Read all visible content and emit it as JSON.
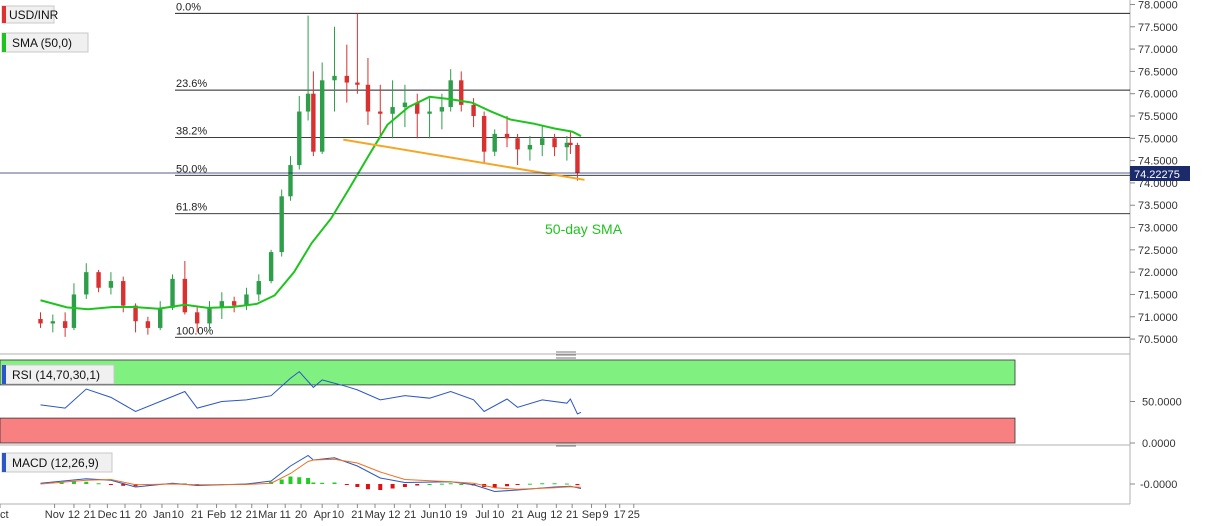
{
  "colors": {
    "candle_up": "#2e9e4a",
    "candle_down": "#d93030",
    "sma": "#1ec41e",
    "trendline": "#f5a623",
    "fib_line": "#222222",
    "rsi_line": "#2a56c6",
    "rsi_overbought_fill": "#80f080",
    "rsi_oversold_fill": "#f88080",
    "macd_line": "#2a56c6",
    "signal_line": "#f07020",
    "hist_up": "#22cc22",
    "hist_down": "#dd1111",
    "price_badge": "#1a2a6a"
  },
  "chart_data": [
    {
      "type": "candlestick",
      "symbol": "USD/INR",
      "indicator_label": "SMA (50,0)",
      "annotation": "50-day SMA",
      "current_price": "74.22275",
      "ylim": [
        70.3,
        78.1
      ],
      "y_ticks": [
        "78.0000",
        "77.5000",
        "77.0000",
        "76.5000",
        "76.0000",
        "75.5000",
        "75.0000",
        "74.5000",
        "74.0000",
        "73.5000",
        "73.0000",
        "72.5000",
        "72.0000",
        "71.5000",
        "71.0000",
        "70.5000"
      ],
      "x_ticks": [
        "Oct",
        "Nov",
        "12",
        "21",
        "Dec",
        "11",
        "20",
        "Jan",
        "10",
        "21",
        "Feb",
        "12",
        "21",
        "Mar",
        "11",
        "20",
        "Apr",
        "10",
        "21",
        "May",
        "12",
        "21",
        "Jun",
        "10",
        "19",
        "Jul",
        "10",
        "21",
        "Aug",
        "12",
        "21",
        "Sep",
        "9",
        "17",
        "25"
      ],
      "fibonacci": [
        {
          "label": "0.0%",
          "value": 77.8
        },
        {
          "label": "23.6%",
          "value": 76.08
        },
        {
          "label": "38.2%",
          "value": 75.02
        },
        {
          "label": "50.0%",
          "value": 74.17
        },
        {
          "label": "61.8%",
          "value": 73.31
        },
        {
          "label": "100.0%",
          "value": 70.54
        }
      ],
      "trendline": {
        "start": {
          "date": "2020-04-13",
          "value": 74.97
        },
        "end": {
          "date": "2020-08-28",
          "value": 74.07
        }
      },
      "sma_50": [
        [
          "2019-10-24",
          71.37
        ],
        [
          "2019-11-08",
          71.21
        ],
        [
          "2019-11-20",
          71.17
        ],
        [
          "2019-12-04",
          71.22
        ],
        [
          "2019-12-16",
          71.22
        ],
        [
          "2019-12-30",
          71.18
        ],
        [
          "2020-01-14",
          71.27
        ],
        [
          "2020-01-27",
          71.2
        ],
        [
          "2020-02-10",
          71.22
        ],
        [
          "2020-02-24",
          71.29
        ],
        [
          "2020-03-05",
          71.48
        ],
        [
          "2020-03-16",
          72.0
        ],
        [
          "2020-03-26",
          72.65
        ],
        [
          "2020-04-06",
          73.2
        ],
        [
          "2020-04-16",
          73.85
        ],
        [
          "2020-04-28",
          74.65
        ],
        [
          "2020-05-08",
          75.3
        ],
        [
          "2020-05-20",
          75.7
        ],
        [
          "2020-06-01",
          75.93
        ],
        [
          "2020-06-12",
          75.88
        ],
        [
          "2020-06-25",
          75.8
        ],
        [
          "2020-07-06",
          75.6
        ],
        [
          "2020-07-17",
          75.42
        ],
        [
          "2020-07-30",
          75.33
        ],
        [
          "2020-08-11",
          75.22
        ],
        [
          "2020-08-21",
          75.15
        ],
        [
          "2020-08-26",
          75.05
        ]
      ],
      "candles": [
        [
          "2019-10-24",
          70.95,
          71.1,
          70.75,
          70.85
        ],
        [
          "2019-10-31",
          70.85,
          71.05,
          70.65,
          70.9
        ],
        [
          "2019-11-07",
          70.9,
          71.1,
          70.55,
          70.75
        ],
        [
          "2019-11-12",
          70.75,
          71.75,
          70.7,
          71.5
        ],
        [
          "2019-11-19",
          71.5,
          72.2,
          71.4,
          72.0
        ],
        [
          "2019-11-26",
          72.0,
          72.05,
          71.55,
          71.65
        ],
        [
          "2019-12-03",
          71.65,
          72.0,
          71.5,
          71.8
        ],
        [
          "2019-12-10",
          71.8,
          71.9,
          71.1,
          71.25
        ],
        [
          "2019-12-17",
          71.25,
          71.3,
          70.65,
          70.9
        ],
        [
          "2019-12-24",
          70.9,
          71.0,
          70.6,
          70.75
        ],
        [
          "2019-12-31",
          70.75,
          71.35,
          70.7,
          71.2
        ],
        [
          "2020-01-07",
          71.2,
          71.95,
          71.15,
          71.85
        ],
        [
          "2020-01-14",
          71.85,
          72.25,
          71.05,
          71.1
        ],
        [
          "2020-01-21",
          71.1,
          71.25,
          70.65,
          70.85
        ],
        [
          "2020-01-28",
          70.85,
          71.35,
          70.7,
          71.2
        ],
        [
          "2020-02-04",
          71.2,
          71.55,
          70.95,
          71.35
        ],
        [
          "2020-02-11",
          71.35,
          71.45,
          71.1,
          71.25
        ],
        [
          "2020-02-18",
          71.25,
          71.65,
          71.15,
          71.5
        ],
        [
          "2020-02-25",
          71.5,
          71.95,
          71.35,
          71.8
        ],
        [
          "2020-03-03",
          71.8,
          72.5,
          71.75,
          72.45
        ],
        [
          "2020-03-09",
          72.45,
          73.85,
          72.35,
          73.7
        ],
        [
          "2020-03-14",
          73.7,
          74.6,
          73.6,
          74.4
        ],
        [
          "2020-03-19",
          74.4,
          75.95,
          74.3,
          75.6
        ],
        [
          "2020-03-24",
          75.6,
          77.75,
          75.4,
          76.0
        ],
        [
          "2020-03-27",
          76.0,
          76.5,
          74.6,
          74.7
        ],
        [
          "2020-04-01",
          74.7,
          76.7,
          74.65,
          76.3
        ],
        [
          "2020-04-08",
          76.3,
          77.5,
          75.6,
          76.4
        ],
        [
          "2020-04-15",
          76.4,
          77.1,
          75.8,
          76.25
        ],
        [
          "2020-04-21",
          76.25,
          77.8,
          76.0,
          76.2
        ],
        [
          "2020-04-27",
          76.2,
          76.8,
          75.3,
          75.6
        ],
        [
          "2020-05-04",
          75.6,
          76.2,
          75.0,
          75.55
        ],
        [
          "2020-05-11",
          75.55,
          76.3,
          75.0,
          75.7
        ],
        [
          "2020-05-18",
          75.7,
          76.2,
          75.25,
          75.8
        ],
        [
          "2020-05-25",
          75.8,
          76.0,
          75.0,
          75.55
        ],
        [
          "2020-06-01",
          75.55,
          75.9,
          75.0,
          75.6
        ],
        [
          "2020-06-08",
          75.6,
          76.0,
          75.2,
          75.7
        ],
        [
          "2020-06-13",
          75.7,
          76.55,
          75.6,
          76.3
        ],
        [
          "2020-06-19",
          76.3,
          76.5,
          75.6,
          75.75
        ],
        [
          "2020-06-26",
          75.75,
          75.9,
          75.25,
          75.5
        ],
        [
          "2020-07-02",
          75.5,
          75.6,
          74.45,
          74.7
        ],
        [
          "2020-07-08",
          74.7,
          75.2,
          74.6,
          75.1
        ],
        [
          "2020-07-15",
          75.1,
          75.5,
          74.8,
          75.0
        ],
        [
          "2020-07-21",
          75.0,
          75.1,
          74.4,
          74.75
        ],
        [
          "2020-07-28",
          74.75,
          75.05,
          74.5,
          74.85
        ],
        [
          "2020-08-04",
          74.85,
          75.3,
          74.6,
          75.0
        ],
        [
          "2020-08-11",
          75.0,
          75.1,
          74.6,
          74.8
        ],
        [
          "2020-08-18",
          74.8,
          75.05,
          74.5,
          74.9
        ],
        [
          "2020-08-20",
          74.9,
          75.15,
          74.65,
          74.85
        ],
        [
          "2020-08-24",
          74.85,
          74.9,
          74.05,
          74.22
        ]
      ]
    },
    {
      "type": "line",
      "indicator_label": "RSI (14,70,30,1)",
      "ylim": [
        0,
        100
      ],
      "y_ticks": [
        "50.0000",
        "0.0000"
      ],
      "overbought": 70,
      "oversold": 30,
      "series": [
        {
          "values": [
            [
              "2019-10-24",
              46
            ],
            [
              "2019-11-07",
              42
            ],
            [
              "2019-11-19",
              65
            ],
            [
              "2019-12-03",
              55
            ],
            [
              "2019-12-17",
              38
            ],
            [
              "2020-01-07",
              56
            ],
            [
              "2020-01-14",
              62
            ],
            [
              "2020-01-21",
              42
            ],
            [
              "2020-02-04",
              50
            ],
            [
              "2020-02-18",
              52
            ],
            [
              "2020-03-03",
              57
            ],
            [
              "2020-03-14",
              78
            ],
            [
              "2020-03-19",
              86
            ],
            [
              "2020-03-27",
              67
            ],
            [
              "2020-04-01",
              76
            ],
            [
              "2020-04-15",
              68
            ],
            [
              "2020-04-21",
              64
            ],
            [
              "2020-05-04",
              52
            ],
            [
              "2020-05-18",
              57
            ],
            [
              "2020-06-01",
              54
            ],
            [
              "2020-06-13",
              62
            ],
            [
              "2020-06-26",
              52
            ],
            [
              "2020-07-02",
              38
            ],
            [
              "2020-07-15",
              53
            ],
            [
              "2020-07-21",
              43
            ],
            [
              "2020-08-04",
              52
            ],
            [
              "2020-08-18",
              48
            ],
            [
              "2020-08-20",
              53
            ],
            [
              "2020-08-24",
              35
            ],
            [
              "2020-08-26",
              37
            ]
          ]
        }
      ]
    },
    {
      "type": "line",
      "indicator_label": "MACD (12,26,9)",
      "y_ticks": [
        "-0.0000"
      ],
      "ylim": [
        -1.2,
        2.4
      ],
      "series": [
        {
          "values": [
            [
              "2019-10-24",
              0.05
            ],
            [
              "2019-11-19",
              0.35
            ],
            [
              "2019-12-03",
              0.25
            ],
            [
              "2019-12-17",
              -0.2
            ],
            [
              "2020-01-07",
              0.05
            ],
            [
              "2020-01-21",
              -0.1
            ],
            [
              "2020-02-18",
              0.0
            ],
            [
              "2020-03-03",
              0.2
            ],
            [
              "2020-03-14",
              1.2
            ],
            [
              "2020-03-24",
              1.9
            ],
            [
              "2020-03-27",
              1.6
            ],
            [
              "2020-04-08",
              1.75
            ],
            [
              "2020-04-21",
              1.2
            ],
            [
              "2020-05-04",
              0.4
            ],
            [
              "2020-05-18",
              0.1
            ],
            [
              "2020-06-13",
              0.15
            ],
            [
              "2020-06-26",
              -0.05
            ],
            [
              "2020-07-08",
              -0.5
            ],
            [
              "2020-07-21",
              -0.4
            ],
            [
              "2020-08-11",
              -0.2
            ],
            [
              "2020-08-20",
              -0.15
            ],
            [
              "2020-08-26",
              -0.3
            ]
          ]
        },
        {
          "values": [
            [
              "2019-10-24",
              0.0
            ],
            [
              "2019-11-19",
              0.25
            ],
            [
              "2019-12-03",
              0.3
            ],
            [
              "2019-12-17",
              -0.05
            ],
            [
              "2020-01-07",
              0.0
            ],
            [
              "2020-01-21",
              -0.05
            ],
            [
              "2020-02-18",
              -0.03
            ],
            [
              "2020-03-03",
              0.05
            ],
            [
              "2020-03-14",
              0.7
            ],
            [
              "2020-03-24",
              1.5
            ],
            [
              "2020-03-27",
              1.6
            ],
            [
              "2020-04-08",
              1.65
            ],
            [
              "2020-04-21",
              1.4
            ],
            [
              "2020-05-04",
              0.8
            ],
            [
              "2020-05-18",
              0.3
            ],
            [
              "2020-06-13",
              0.15
            ],
            [
              "2020-06-26",
              0.05
            ],
            [
              "2020-07-08",
              -0.25
            ],
            [
              "2020-07-21",
              -0.35
            ],
            [
              "2020-08-11",
              -0.25
            ],
            [
              "2020-08-20",
              -0.18
            ],
            [
              "2020-08-26",
              -0.22
            ]
          ]
        }
      ],
      "histogram": [
        [
          "2019-11-05",
          0.1
        ],
        [
          "2019-11-12",
          0.2
        ],
        [
          "2019-11-19",
          0.15
        ],
        [
          "2019-11-26",
          0.05
        ],
        [
          "2019-12-03",
          -0.05
        ],
        [
          "2019-12-10",
          -0.12
        ],
        [
          "2019-12-17",
          -0.15
        ],
        [
          "2019-12-24",
          -0.08
        ],
        [
          "2020-01-07",
          0.05
        ],
        [
          "2020-01-14",
          0.04
        ],
        [
          "2020-01-21",
          -0.05
        ],
        [
          "2020-02-04",
          -0.02
        ],
        [
          "2020-02-18",
          0.03
        ],
        [
          "2020-03-03",
          0.15
        ],
        [
          "2020-03-09",
          0.3
        ],
        [
          "2020-03-14",
          0.5
        ],
        [
          "2020-03-19",
          0.45
        ],
        [
          "2020-03-24",
          0.4
        ],
        [
          "2020-03-27",
          0.1
        ],
        [
          "2020-04-01",
          0.08
        ],
        [
          "2020-04-08",
          0.1
        ],
        [
          "2020-04-15",
          -0.05
        ],
        [
          "2020-04-21",
          -0.2
        ],
        [
          "2020-04-27",
          -0.35
        ],
        [
          "2020-05-04",
          -0.4
        ],
        [
          "2020-05-11",
          -0.3
        ],
        [
          "2020-05-18",
          -0.2
        ],
        [
          "2020-05-25",
          -0.1
        ],
        [
          "2020-06-01",
          0.0
        ],
        [
          "2020-06-08",
          0.02
        ],
        [
          "2020-06-13",
          0.05
        ],
        [
          "2020-06-19",
          0.0
        ],
        [
          "2020-06-26",
          -0.1
        ],
        [
          "2020-07-02",
          -0.2
        ],
        [
          "2020-07-08",
          -0.25
        ],
        [
          "2020-07-15",
          -0.15
        ],
        [
          "2020-07-21",
          -0.05
        ],
        [
          "2020-07-28",
          0.02
        ],
        [
          "2020-08-04",
          0.05
        ],
        [
          "2020-08-11",
          0.05
        ],
        [
          "2020-08-18",
          0.03
        ],
        [
          "2020-08-24",
          -0.08
        ]
      ]
    }
  ]
}
